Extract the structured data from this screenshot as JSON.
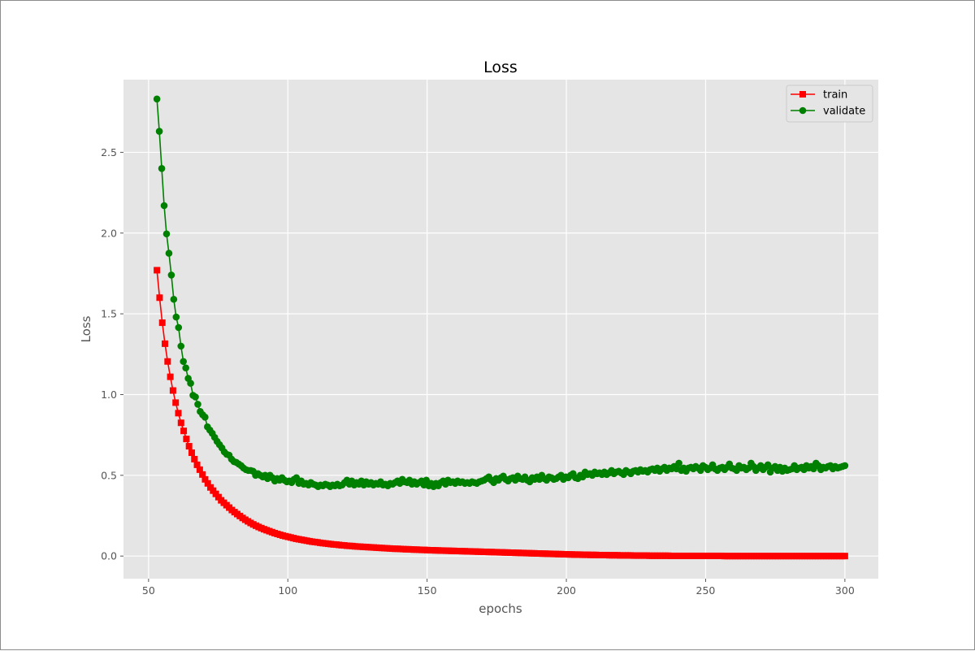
{
  "chart_data": {
    "type": "line",
    "title": "Loss",
    "xlabel": "epochs",
    "ylabel": "Loss",
    "xlim": [
      41,
      312
    ],
    "ylim": [
      -0.14,
      2.95
    ],
    "xticks": [
      50,
      100,
      150,
      200,
      250,
      300
    ],
    "yticks": [
      0.0,
      0.5,
      1.0,
      1.5,
      2.0,
      2.5
    ],
    "xtick_labels": [
      "50",
      "100",
      "150",
      "200",
      "250",
      "300"
    ],
    "ytick_labels": [
      "0.0",
      "0.5",
      "1.0",
      "1.5",
      "2.0",
      "2.5"
    ],
    "grid": true,
    "legend_position": "top-right",
    "x_start": 53,
    "x_end": 300,
    "series": [
      {
        "name": "train",
        "color": "#ff0000",
        "marker": "square",
        "values": [
          1.77,
          1.6,
          1.445,
          1.315,
          1.205,
          1.11,
          1.025,
          0.95,
          0.885,
          0.825,
          0.775,
          0.725,
          0.68,
          0.64,
          0.6,
          0.565,
          0.535,
          0.505,
          0.475,
          0.45,
          0.425,
          0.405,
          0.385,
          0.365,
          0.345,
          0.33,
          0.315,
          0.3,
          0.285,
          0.272,
          0.26,
          0.248,
          0.236,
          0.225,
          0.215,
          0.205,
          0.196,
          0.188,
          0.18,
          0.173,
          0.166,
          0.16,
          0.154,
          0.148,
          0.142,
          0.137,
          0.132,
          0.127,
          0.123,
          0.119,
          0.115,
          0.111,
          0.107,
          0.104,
          0.101,
          0.098,
          0.095,
          0.092,
          0.089,
          0.087,
          0.085,
          0.082,
          0.08,
          0.078,
          0.076,
          0.074,
          0.072,
          0.071,
          0.069,
          0.067,
          0.066,
          0.064,
          0.063,
          0.062,
          0.06,
          0.059,
          0.058,
          0.057,
          0.056,
          0.055,
          0.054,
          0.053,
          0.052,
          0.051,
          0.05,
          0.049,
          0.048,
          0.047,
          0.046,
          0.045,
          0.045,
          0.044,
          0.043,
          0.042,
          0.042,
          0.041,
          0.04,
          0.04,
          0.039,
          0.038,
          0.038,
          0.037,
          0.036,
          0.036,
          0.035,
          0.035,
          0.034,
          0.034,
          0.033,
          0.033,
          0.032,
          0.032,
          0.031,
          0.031,
          0.03,
          0.03,
          0.029,
          0.029,
          0.028,
          0.028,
          0.027,
          0.027,
          0.026,
          0.026,
          0.025,
          0.025,
          0.024,
          0.024,
          0.023,
          0.023,
          0.022,
          0.022,
          0.021,
          0.021,
          0.02,
          0.02,
          0.019,
          0.019,
          0.018,
          0.018,
          0.017,
          0.017,
          0.016,
          0.016,
          0.015,
          0.015,
          0.014,
          0.014,
          0.013,
          0.013,
          0.012,
          0.012,
          0.011,
          0.011,
          0.01,
          0.01,
          0.009,
          0.009,
          0.009,
          0.008,
          0.008,
          0.008,
          0.007,
          0.007,
          0.007,
          0.006,
          0.006,
          0.006,
          0.006,
          0.005,
          0.005,
          0.005,
          0.005,
          0.004,
          0.004,
          0.004,
          0.004,
          0.004,
          0.003,
          0.003,
          0.003,
          0.003,
          0.003,
          0.003,
          0.002,
          0.002,
          0.002,
          0.002,
          0.002,
          0.002,
          0.002,
          0.002,
          0.001,
          0.001,
          0.001,
          0.001,
          0.001,
          0.001,
          0.001,
          0.001,
          0.001,
          0.001,
          0.001,
          0.001,
          0.001,
          0.001,
          0.001,
          0.001,
          0.001,
          0.001,
          0.001,
          0.001,
          0.0,
          0.0,
          0.0,
          0.0,
          0.0,
          0.0,
          0.0,
          0.0,
          0.0,
          0.0,
          0.0,
          0.0,
          0.0,
          0.0,
          0.0,
          0.0,
          0.0,
          0.0,
          0.0,
          0.0,
          0.0,
          0.0,
          0.0,
          0.0,
          0.0,
          0.0,
          0.0,
          0.0,
          0.0,
          0.0,
          0.0,
          0.0,
          0.0,
          0.0,
          0.0,
          0.0,
          0.0,
          0.0,
          0.0,
          0.0,
          0.0,
          0.0,
          0.0,
          0.0,
          0.0,
          0.0
        ]
      },
      {
        "name": "validate",
        "color": "#008000",
        "marker": "circle",
        "values": [
          2.83,
          2.63,
          2.4,
          2.17,
          1.995,
          1.875,
          1.74,
          1.59,
          1.48,
          1.415,
          1.3,
          1.205,
          1.165,
          1.1,
          1.07,
          0.995,
          0.985,
          0.94,
          0.895,
          0.875,
          0.86,
          0.8,
          0.78,
          0.76,
          0.735,
          0.71,
          0.69,
          0.67,
          0.645,
          0.63,
          0.625,
          0.6,
          0.585,
          0.58,
          0.57,
          0.56,
          0.545,
          0.535,
          0.53,
          0.53,
          0.525,
          0.5,
          0.51,
          0.5,
          0.49,
          0.5,
          0.48,
          0.5,
          0.485,
          0.465,
          0.48,
          0.47,
          0.485,
          0.47,
          0.46,
          0.465,
          0.455,
          0.475,
          0.485,
          0.45,
          0.465,
          0.445,
          0.45,
          0.44,
          0.455,
          0.445,
          0.44,
          0.43,
          0.44,
          0.435,
          0.445,
          0.44,
          0.43,
          0.44,
          0.435,
          0.445,
          0.435,
          0.44,
          0.455,
          0.47,
          0.445,
          0.465,
          0.44,
          0.455,
          0.445,
          0.465,
          0.44,
          0.46,
          0.445,
          0.455,
          0.44,
          0.45,
          0.445,
          0.46,
          0.44,
          0.445,
          0.435,
          0.45,
          0.445,
          0.455,
          0.465,
          0.45,
          0.475,
          0.46,
          0.455,
          0.47,
          0.445,
          0.46,
          0.445,
          0.455,
          0.465,
          0.44,
          0.47,
          0.435,
          0.45,
          0.43,
          0.45,
          0.435,
          0.455,
          0.465,
          0.445,
          0.47,
          0.455,
          0.46,
          0.45,
          0.465,
          0.455,
          0.46,
          0.45,
          0.455,
          0.45,
          0.46,
          0.455,
          0.45,
          0.46,
          0.465,
          0.47,
          0.48,
          0.49,
          0.47,
          0.455,
          0.48,
          0.47,
          0.485,
          0.495,
          0.475,
          0.465,
          0.48,
          0.485,
          0.47,
          0.495,
          0.48,
          0.475,
          0.49,
          0.47,
          0.46,
          0.485,
          0.475,
          0.49,
          0.475,
          0.5,
          0.48,
          0.47,
          0.49,
          0.485,
          0.475,
          0.48,
          0.49,
          0.5,
          0.475,
          0.49,
          0.485,
          0.5,
          0.51,
          0.485,
          0.48,
          0.5,
          0.49,
          0.52,
          0.505,
          0.51,
          0.5,
          0.52,
          0.51,
          0.515,
          0.505,
          0.52,
          0.505,
          0.515,
          0.53,
          0.51,
          0.52,
          0.525,
          0.515,
          0.505,
          0.53,
          0.52,
          0.51,
          0.525,
          0.53,
          0.52,
          0.535,
          0.525,
          0.53,
          0.52,
          0.535,
          0.54,
          0.53,
          0.545,
          0.525,
          0.54,
          0.55,
          0.53,
          0.545,
          0.54,
          0.555,
          0.54,
          0.575,
          0.53,
          0.545,
          0.525,
          0.545,
          0.55,
          0.54,
          0.555,
          0.545,
          0.53,
          0.56,
          0.55,
          0.535,
          0.545,
          0.565,
          0.54,
          0.53,
          0.545,
          0.55,
          0.535,
          0.55,
          0.57,
          0.545,
          0.54,
          0.53,
          0.56,
          0.545,
          0.55,
          0.535,
          0.545,
          0.575,
          0.555,
          0.53,
          0.545,
          0.56,
          0.535,
          0.55,
          0.565,
          0.52,
          0.545,
          0.555,
          0.53,
          0.55,
          0.525,
          0.545,
          0.53,
          0.535,
          0.54,
          0.56,
          0.535,
          0.545,
          0.55,
          0.535,
          0.56,
          0.545,
          0.555,
          0.54,
          0.575,
          0.56,
          0.535,
          0.55,
          0.545,
          0.555,
          0.56,
          0.54,
          0.555,
          0.545,
          0.55,
          0.555,
          0.56
        ]
      }
    ]
  }
}
